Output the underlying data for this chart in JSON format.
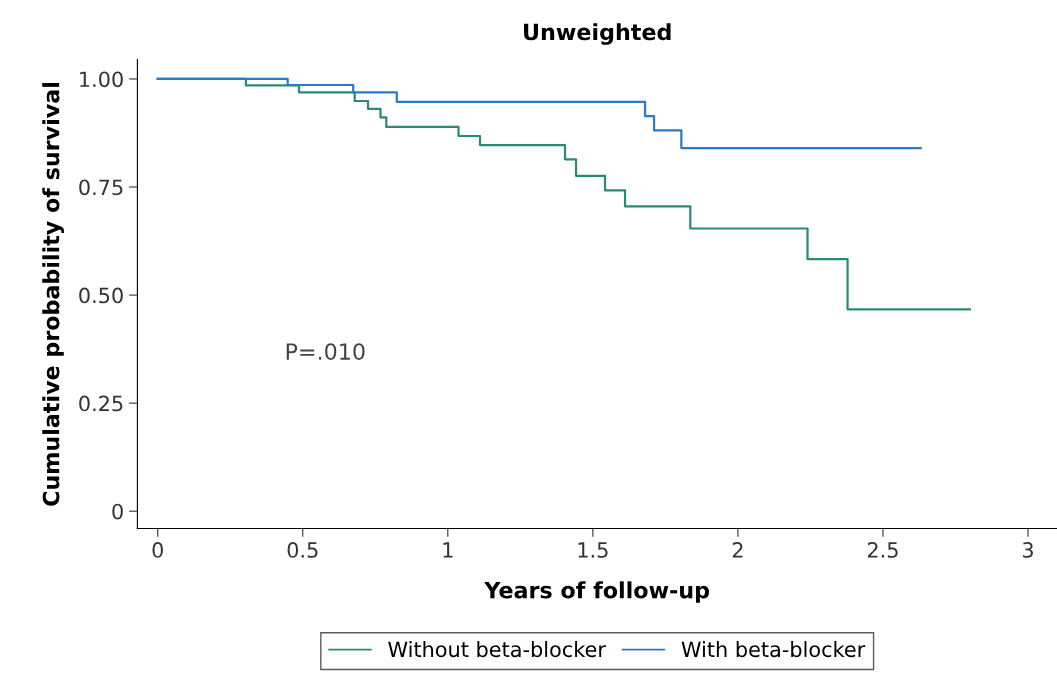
{
  "chart_data": {
    "type": "step",
    "title": "Unweighted",
    "xlabel": "Years of follow-up",
    "ylabel": "Cumulative probability of survival",
    "series": [
      {
        "name": "Without beta-blocker",
        "color": "#2a8a74",
        "x": [
          0,
          0.304,
          0.487,
          0.679,
          0.725,
          0.768,
          0.788,
          1.037,
          1.111,
          1.404,
          1.442,
          1.542,
          1.611,
          1.836,
          2.24,
          2.378,
          2.8
        ],
        "values": [
          1.0,
          0.985,
          0.969,
          0.949,
          0.931,
          0.911,
          0.889,
          0.868,
          0.847,
          0.814,
          0.776,
          0.742,
          0.705,
          0.654,
          0.583,
          0.467,
          0.467
        ]
      },
      {
        "name": "With beta-blocker",
        "color": "#2a7ac8",
        "x": [
          0,
          0.448,
          0.674,
          0.824,
          1.68,
          1.711,
          1.805,
          2.63
        ],
        "values": [
          1.0,
          0.986,
          0.969,
          0.947,
          0.914,
          0.881,
          0.84,
          0.84
        ]
      }
    ],
    "xlim": [
      -0.07,
      3.1
    ],
    "ylim": [
      -0.04,
      1.045
    ],
    "xticks": [
      0,
      0.5,
      1,
      1.5,
      2,
      2.5,
      3
    ],
    "yticks": [
      {
        "value": 0,
        "label": "0"
      },
      0.25,
      {
        "value": 0.5,
        "label": "0.50"
      },
      0.75,
      {
        "value": 1,
        "label": "1.00"
      }
    ],
    "annotations": [
      "P=.010"
    ],
    "legend": "bottom",
    "grid": false
  }
}
